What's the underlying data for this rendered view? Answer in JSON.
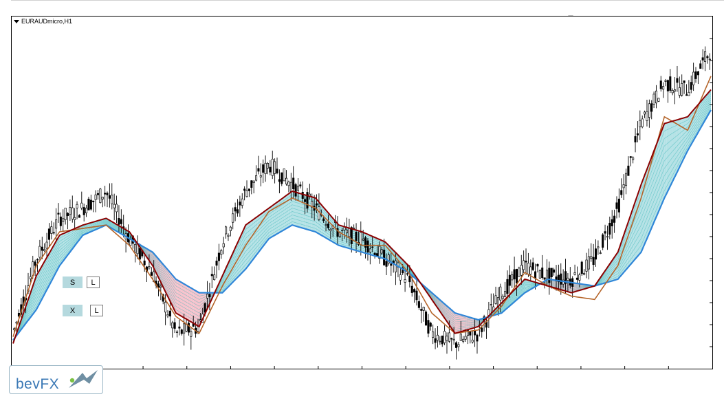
{
  "chart_title": "EURAUDmicro,H1",
  "panel": {
    "row1": {
      "left": "S",
      "right": "L"
    },
    "row2": {
      "left": "X",
      "right": "L"
    }
  },
  "logo": {
    "text": "bevFX",
    "icon": "bird-icon"
  },
  "colors": {
    "bull_band": "#a8dde2",
    "bull_band_line": "#2ab0b0",
    "bear_band": "#f6b9c4",
    "bear_band_line": "#6e9ad4",
    "slow_line": "#2f86d8",
    "fast_line": "#8b0000",
    "mid_line": "#b5652a",
    "candle": "#000000"
  },
  "chart_data": {
    "type": "line",
    "title": "EURAUDmicro,H1",
    "xlabel": "",
    "ylabel": "",
    "ylim": [
      0,
      100
    ],
    "grid": false,
    "x": [
      0,
      6,
      12,
      18,
      24,
      30,
      36,
      42,
      48,
      54,
      60,
      66,
      72,
      78,
      84,
      90,
      96,
      102,
      108,
      114,
      120,
      126,
      132,
      138,
      144,
      150,
      156,
      162,
      168,
      174,
      180
    ],
    "series": [
      {
        "key": "price",
        "values": [
          8,
          30,
          42,
          45,
          50,
          36,
          26,
          8,
          10,
          35,
          50,
          58,
          52,
          45,
          38,
          36,
          30,
          24,
          8,
          5,
          8,
          20,
          28,
          25,
          24,
          30,
          45,
          70,
          82,
          80,
          92
        ]
      },
      {
        "key": "fast",
        "values": [
          5,
          25,
          37,
          40,
          42,
          38,
          28,
          14,
          10,
          25,
          40,
          45,
          50,
          48,
          40,
          38,
          35,
          28,
          18,
          8,
          10,
          17,
          24,
          22,
          20,
          22,
          32,
          52,
          70,
          72,
          80
        ]
      },
      {
        "key": "mid",
        "values": [
          7,
          28,
          38,
          39,
          40,
          34,
          24,
          13,
          8,
          22,
          34,
          44,
          48,
          45,
          38,
          34,
          34,
          26,
          14,
          8,
          9,
          16,
          26,
          22,
          19,
          18,
          28,
          48,
          72,
          68,
          84
        ]
      },
      {
        "key": "slow",
        "values": [
          6,
          15,
          28,
          37,
          40,
          36,
          32,
          24,
          20,
          20,
          27,
          36,
          40,
          38,
          34,
          32,
          30,
          26,
          20,
          14,
          12,
          14,
          20,
          24,
          23,
          22,
          24,
          32,
          48,
          62,
          74
        ]
      }
    ]
  }
}
